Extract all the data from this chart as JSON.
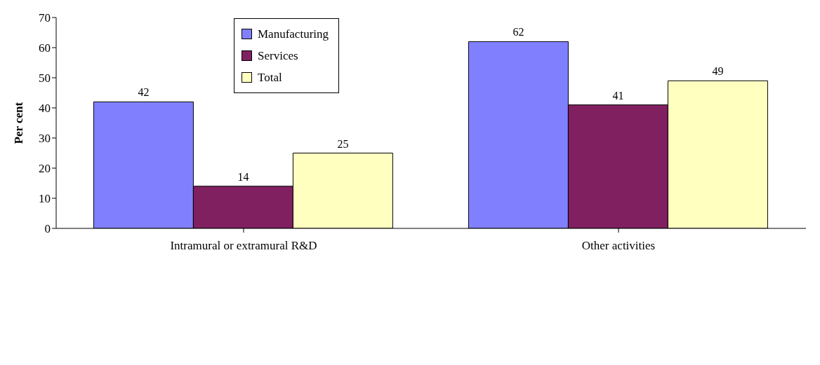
{
  "chart_data": {
    "type": "bar",
    "categories": [
      "Intramural or extramural R&D",
      "Other activities"
    ],
    "series": [
      {
        "name": "Manufacturing",
        "color": "#8080ff",
        "values": [
          42,
          62
        ]
      },
      {
        "name": "Services",
        "color": "#802060",
        "values": [
          14,
          41
        ]
      },
      {
        "name": "Total",
        "color": "#ffffc0",
        "values": [
          25,
          49
        ]
      }
    ],
    "ylabel": "Per cent",
    "ylim": [
      0,
      70
    ],
    "yticks": [
      0,
      10,
      20,
      30,
      40,
      50,
      60,
      70
    ],
    "grid": false,
    "legend": "top left",
    "data_labels": true
  }
}
